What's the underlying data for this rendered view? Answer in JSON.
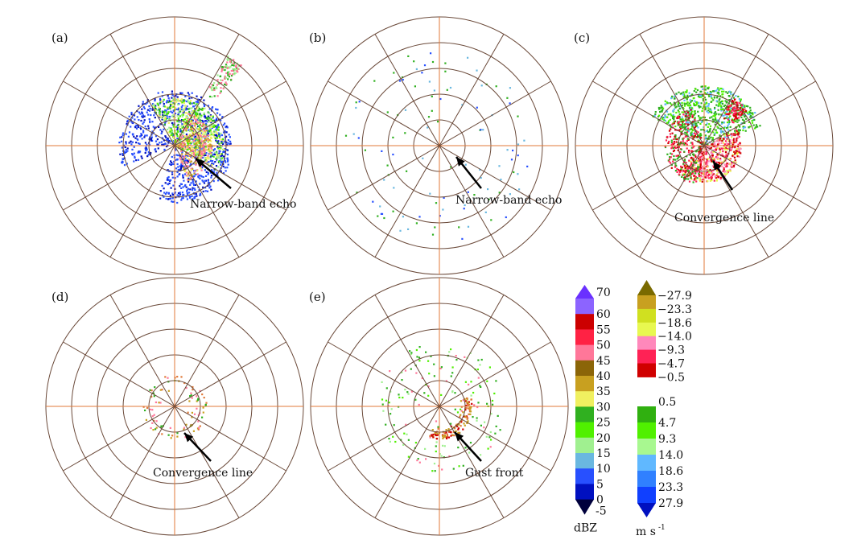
{
  "panels": [
    {
      "id": "a",
      "label": "(a)",
      "annotation": "Narrow-band echo"
    },
    {
      "id": "b",
      "label": "(b)",
      "annotation": "Narrow-band echo"
    },
    {
      "id": "c",
      "label": "(c)",
      "annotation": "Convergence line"
    },
    {
      "id": "d",
      "label": "(d)",
      "annotation": "Convergence line"
    },
    {
      "id": "e",
      "label": "(e)",
      "annotation": "Gust front"
    }
  ],
  "grid": {
    "rings": 5,
    "spoke_step_deg": 30,
    "axis_color": "#e07a3a",
    "grid_color": "#6b4a3a"
  },
  "reflectivity_legend": {
    "unit": "dBZ",
    "over_color": "#6a30ff",
    "under_color": "#00003c",
    "colors": [
      "#8c64ff",
      "#cc0000",
      "#ff2244",
      "#ff7799",
      "#8b6508",
      "#c8a020",
      "#f0f060",
      "#30b020",
      "#50f000",
      "#a0f090",
      "#6ab8e0",
      "#2850ff",
      "#0010c0"
    ],
    "labels": [
      "70",
      "60",
      "55",
      "50",
      "45",
      "40",
      "35",
      "30",
      "25",
      "20",
      "15",
      "10",
      "5",
      "0",
      "-5"
    ]
  },
  "velocity_legend": {
    "unit": "m s",
    "unit_exp": "-1",
    "over_color": "#7a6a00",
    "under_color": "#0010c0",
    "neg_colors": [
      "#c8a020",
      "#d0e020",
      "#e8f850",
      "#ff88bb",
      "#ff2255",
      "#d00000"
    ],
    "pos_colors": [
      "#30b010",
      "#50f000",
      "#a8f890",
      "#60b8ff",
      "#3080ff",
      "#1040ff"
    ],
    "neg_labels": [
      "−27.9",
      "−23.3",
      "−18.6",
      "−14.0",
      "−9.3",
      "−4.7",
      "−0.5"
    ],
    "pos_labels": [
      "0.5",
      "4.7",
      "9.3",
      "14.0",
      "18.6",
      "23.3",
      "27.9"
    ]
  }
}
